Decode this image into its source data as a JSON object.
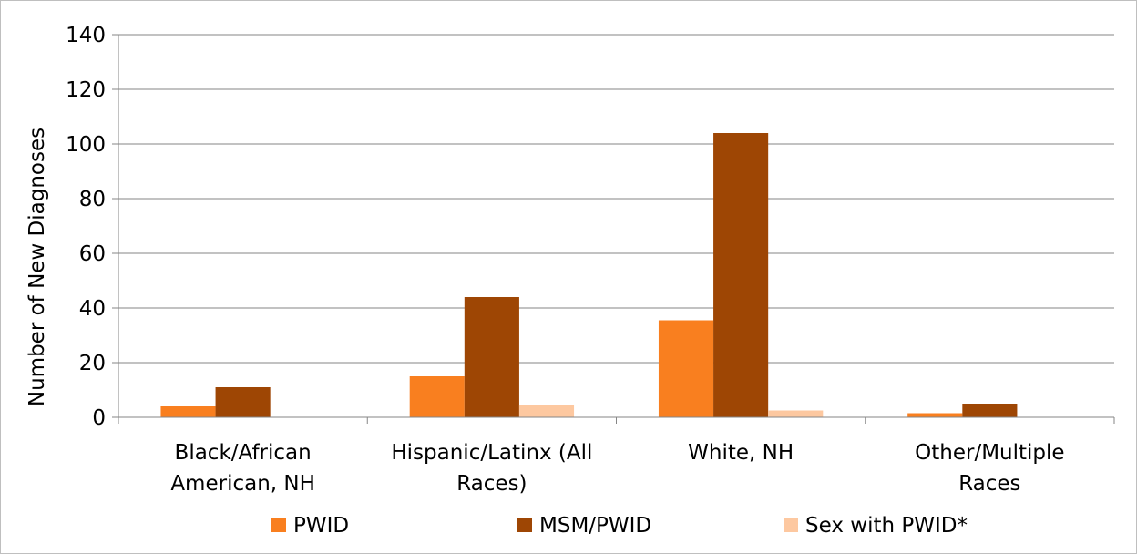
{
  "chart_data": {
    "type": "bar",
    "title": "",
    "xlabel": "",
    "ylabel": "Number of New Diagnoses",
    "ylim": [
      0,
      140
    ],
    "yticks": [
      0,
      20,
      40,
      60,
      80,
      100,
      120,
      140
    ],
    "grid": true,
    "legend_position": "bottom",
    "categories": [
      [
        "Black/African",
        "American, NH"
      ],
      [
        "Hispanic/Latinx (All",
        "Races)"
      ],
      [
        "White, NH"
      ],
      [
        "Other/Multiple",
        "Races"
      ]
    ],
    "series": [
      {
        "name": "PWID",
        "color": "#F97F1F",
        "values": [
          4,
          15,
          35.5,
          1.5
        ]
      },
      {
        "name": "MSM/PWID",
        "color": "#9E4604",
        "values": [
          11,
          44,
          104,
          5
        ]
      },
      {
        "name": "Sex with PWID*",
        "color": "#FDC8A0",
        "values": [
          0,
          4.5,
          2.5,
          0
        ]
      }
    ]
  }
}
